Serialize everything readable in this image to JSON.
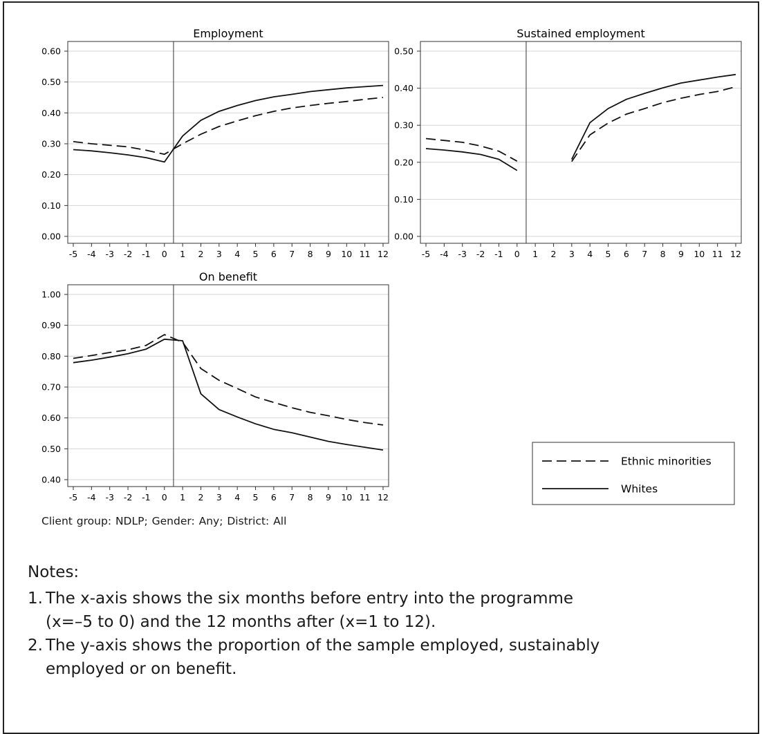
{
  "chart_data": [
    {
      "type": "line",
      "title": "Employment",
      "x": [
        -5,
        -4,
        -3,
        -2,
        -1,
        0,
        1,
        2,
        3,
        4,
        5,
        6,
        7,
        8,
        9,
        10,
        11,
        12
      ],
      "y_ticks": [
        0.0,
        0.1,
        0.2,
        0.3,
        0.4,
        0.5,
        0.6
      ],
      "y_tick_labels": [
        "0.00",
        "0.10",
        "0.20",
        "0.30",
        "0.40",
        "0.50",
        "0.60"
      ],
      "ylim": [
        0.0,
        0.6
      ],
      "series": [
        {
          "name": "Ethnic minorities",
          "style": "dashed",
          "values": [
            0.307,
            0.3,
            0.295,
            0.29,
            0.279,
            0.266,
            0.3,
            0.331,
            0.356,
            0.374,
            0.391,
            0.405,
            0.416,
            0.424,
            0.431,
            0.437,
            0.444,
            0.45
          ]
        },
        {
          "name": "Whites",
          "style": "solid",
          "values": [
            0.281,
            0.277,
            0.271,
            0.264,
            0.255,
            0.241,
            0.325,
            0.376,
            0.405,
            0.424,
            0.44,
            0.452,
            0.46,
            0.469,
            0.475,
            0.481,
            0.485,
            0.489
          ]
        }
      ]
    },
    {
      "type": "line",
      "title": "Sustained employment",
      "x": [
        -5,
        -4,
        -3,
        -2,
        -1,
        0,
        1,
        2,
        3,
        4,
        5,
        6,
        7,
        8,
        9,
        10,
        11,
        12
      ],
      "y_ticks": [
        0.0,
        0.1,
        0.2,
        0.3,
        0.4,
        0.5
      ],
      "y_tick_labels": [
        "0.00",
        "0.10",
        "0.20",
        "0.30",
        "0.40",
        "0.50"
      ],
      "ylim": [
        0.0,
        0.5
      ],
      "series": [
        {
          "name": "Ethnic minorities",
          "style": "dashed",
          "values": [
            0.264,
            0.259,
            0.254,
            0.244,
            0.23,
            0.203,
            null,
            null,
            0.202,
            0.274,
            0.306,
            0.33,
            0.345,
            0.361,
            0.373,
            0.383,
            0.391,
            0.404
          ]
        },
        {
          "name": "Whites",
          "style": "solid",
          "values": [
            0.237,
            0.233,
            0.228,
            0.221,
            0.208,
            0.178,
            null,
            null,
            0.208,
            0.307,
            0.345,
            0.37,
            0.386,
            0.401,
            0.414,
            0.422,
            0.43,
            0.437
          ]
        }
      ]
    },
    {
      "type": "line",
      "title": "On benefit",
      "x": [
        -5,
        -4,
        -3,
        -2,
        -1,
        0,
        1,
        2,
        3,
        4,
        5,
        6,
        7,
        8,
        9,
        10,
        11,
        12
      ],
      "y_ticks": [
        0.4,
        0.5,
        0.6,
        0.7,
        0.8,
        0.9,
        1.0
      ],
      "y_tick_labels": [
        "0.40",
        "0.50",
        "0.60",
        "0.70",
        "0.80",
        "0.90",
        "1.00"
      ],
      "ylim": [
        0.4,
        1.0
      ],
      "series": [
        {
          "name": "Ethnic minorities",
          "style": "dashed",
          "values": [
            0.793,
            0.802,
            0.812,
            0.821,
            0.835,
            0.87,
            0.845,
            0.76,
            0.722,
            0.695,
            0.668,
            0.65,
            0.633,
            0.618,
            0.607,
            0.595,
            0.585,
            0.577
          ]
        },
        {
          "name": "Whites",
          "style": "solid",
          "values": [
            0.779,
            0.787,
            0.797,
            0.808,
            0.823,
            0.855,
            0.85,
            0.678,
            0.627,
            0.603,
            0.581,
            0.563,
            0.552,
            0.538,
            0.524,
            0.514,
            0.505,
            0.496
          ]
        }
      ]
    }
  ],
  "x_tick_labels": [
    "-5",
    "-4",
    "-3",
    "-2",
    "-1",
    "0",
    "1",
    "2",
    "3",
    "4",
    "5",
    "6",
    "7",
    "8",
    "9",
    "10",
    "11",
    "12"
  ],
  "legend": {
    "items": [
      {
        "label": "Ethnic minorities",
        "style": "dashed"
      },
      {
        "label": "Whites",
        "style": "solid"
      }
    ]
  },
  "caption": "Client group: NDLP;   Gender: Any;   District: All",
  "notes": {
    "heading": "Notes:",
    "items": [
      {
        "num": "1.",
        "line1": "The x-axis shows the six months before entry into the programme",
        "line2": "(x=–5 to 0) and the 12 months after (x=1 to 12)."
      },
      {
        "num": "2.",
        "line1": "The y-axis shows the proportion of the sample employed, sustainably",
        "line2": "employed or on benefit."
      }
    ]
  }
}
